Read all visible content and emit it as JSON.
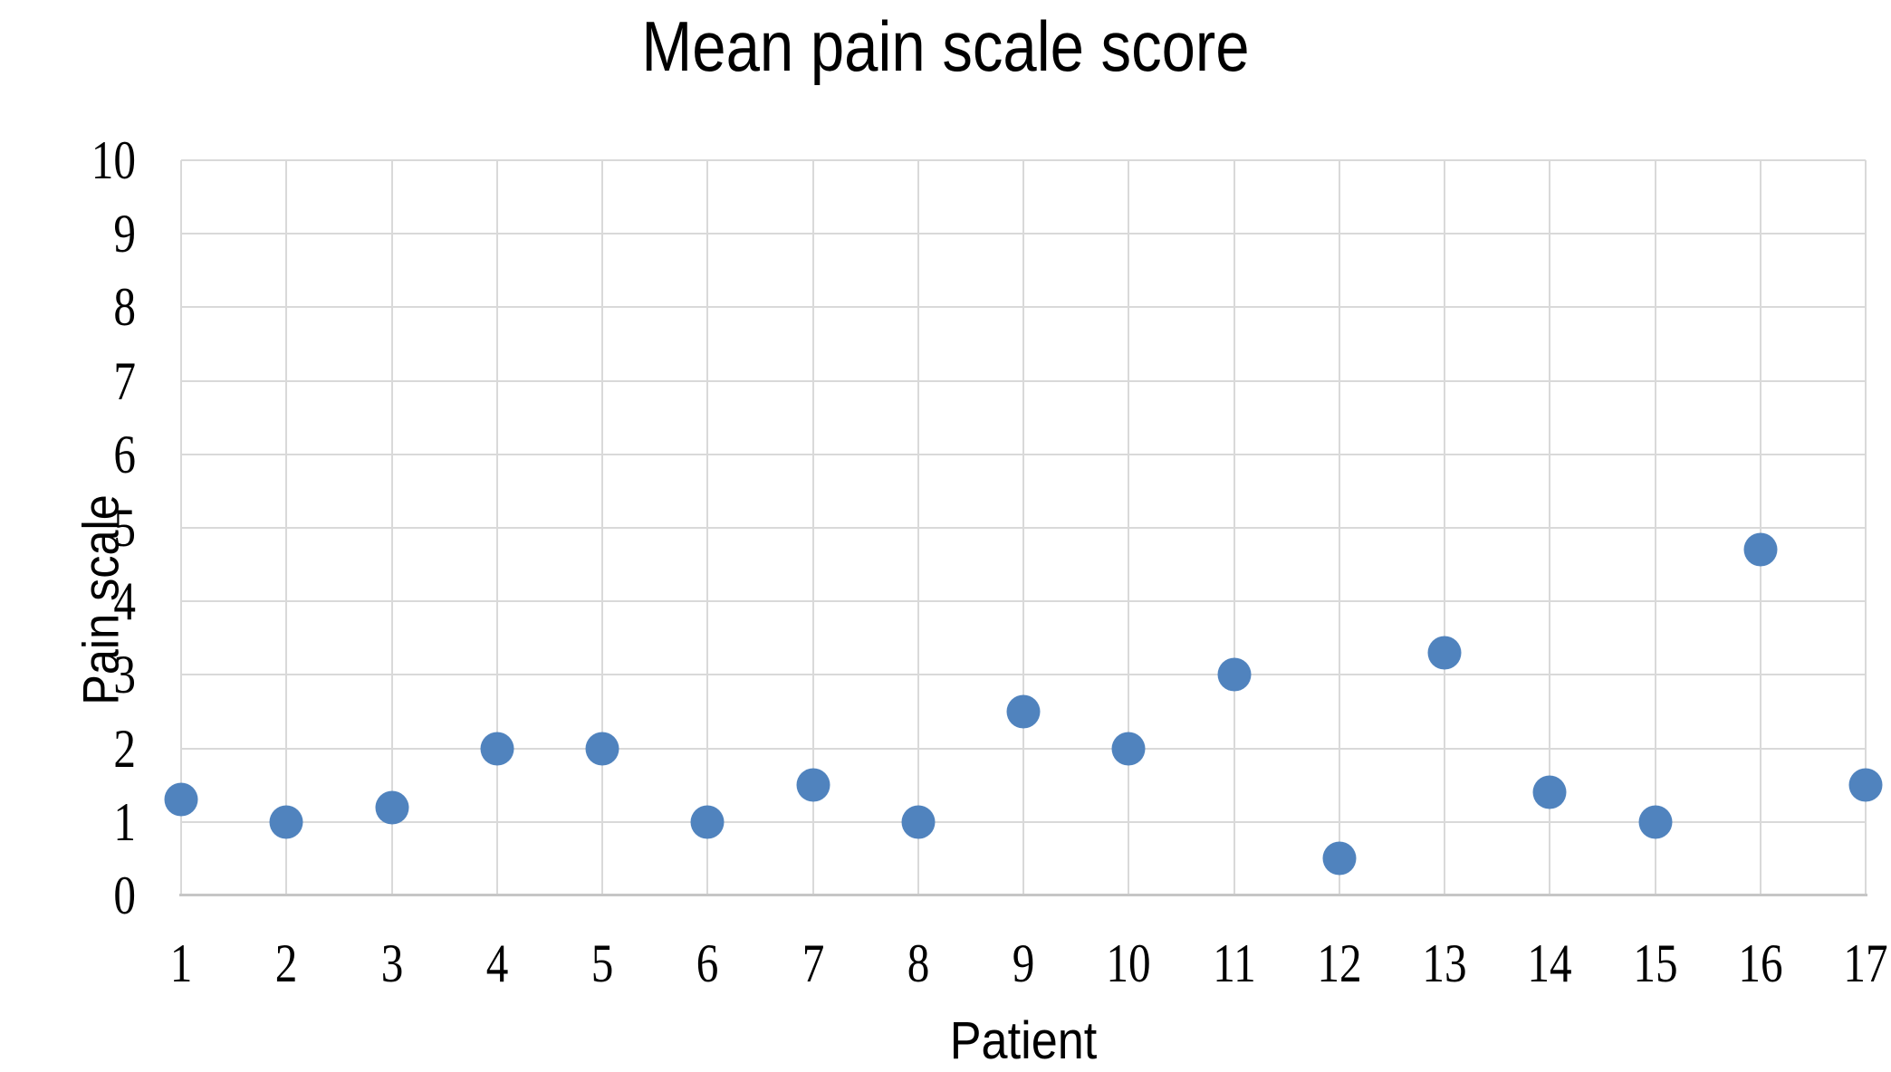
{
  "chart_data": {
    "type": "scatter",
    "title": "Mean pain scale score",
    "xlabel": "Patient",
    "ylabel": "Pain scale",
    "categories": [
      1,
      2,
      3,
      4,
      5,
      6,
      7,
      8,
      9,
      10,
      11,
      12,
      13,
      14,
      15,
      16,
      17
    ],
    "values": [
      1.3,
      1.0,
      1.2,
      2.0,
      2.0,
      1.0,
      1.5,
      1.0,
      2.5,
      2.0,
      3.0,
      0.5,
      3.3,
      1.4,
      1.0,
      4.7,
      1.5
    ],
    "ylim": [
      0,
      10
    ],
    "yticks": [
      0,
      1,
      2,
      3,
      4,
      5,
      6,
      7,
      8,
      9,
      10
    ],
    "grid": true,
    "legend": "none",
    "marker_color": "#5083BE",
    "grid_color": "#D9D9D9",
    "axis_line_color": "#C6C6C6",
    "text_color": "#000000",
    "background_color": "#FFFFFF"
  }
}
